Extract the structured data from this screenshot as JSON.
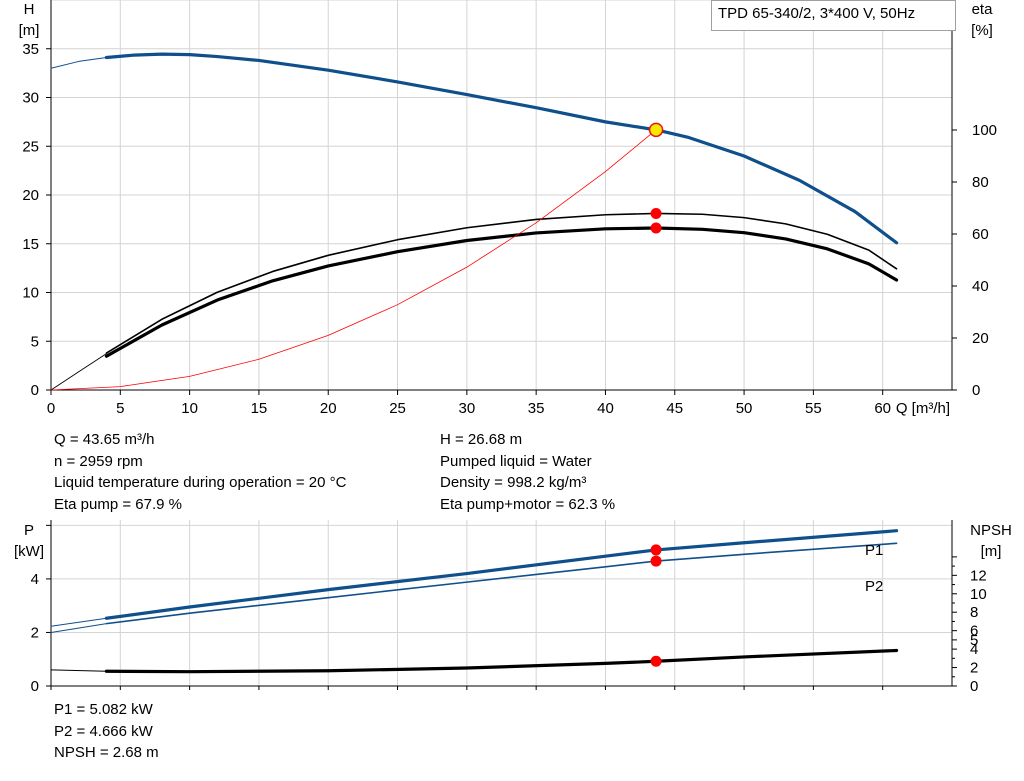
{
  "legend_title": "TPD 65-340/2, 3*400 V, 50Hz",
  "colors": {
    "blue": "#0f4f8c",
    "black": "#000000",
    "red": "#ff0000",
    "op_fill": "#f5e900",
    "op_stroke": "#ee1111"
  },
  "info_top_left": [
    "Q = 43.65 m³/h",
    "n = 2959 rpm",
    "Liquid temperature during operation = 20 °C",
    "Eta pump = 67.9 %"
  ],
  "info_top_right": [
    "H = 26.68 m",
    "Pumped liquid = Water",
    "Density = 998.2 kg/m³",
    "Eta pump+motor = 62.3 %"
  ],
  "info_bottom": [
    "P1 = 5.082 kW",
    "P2 = 4.666 kW",
    "NPSH = 2.68 m"
  ],
  "chart_data": [
    {
      "type": "line",
      "title": "",
      "xlabel": "Q [m³/h]",
      "ylabel_left": [
        "H",
        "[m]"
      ],
      "ylabel_right": [
        "eta",
        "[%]"
      ],
      "xlim": [
        0,
        65
      ],
      "ylim_left": [
        0,
        40
      ],
      "ylim_right": [
        0,
        150
      ],
      "x_ticks": [
        0,
        5,
        10,
        15,
        20,
        25,
        30,
        35,
        40,
        45,
        50,
        55,
        60
      ],
      "y_ticks_left": [
        0,
        5,
        10,
        15,
        20,
        25,
        30,
        35
      ],
      "y_ticks_right": [
        0,
        20,
        40,
        60,
        80,
        100
      ],
      "grid": true,
      "series": [
        {
          "id": "H",
          "axis": "left",
          "color": "#0f4f8c",
          "width": 3.2,
          "x": [
            4,
            6,
            8,
            10,
            12,
            15,
            20,
            25,
            30,
            35,
            40,
            43.65,
            46,
            50,
            54,
            58,
            61
          ],
          "y": [
            34.1,
            34.35,
            34.45,
            34.4,
            34.2,
            33.8,
            32.8,
            31.6,
            30.3,
            28.95,
            27.5,
            26.68,
            25.9,
            24.0,
            21.5,
            18.3,
            15.1
          ]
        },
        {
          "id": "H-ext",
          "axis": "left",
          "color": "#0f4f8c",
          "width": 1,
          "x": [
            0,
            2,
            4
          ],
          "y": [
            33.0,
            33.7,
            34.1
          ]
        },
        {
          "id": "eta-pump",
          "axis": "right",
          "color": "#000000",
          "width": 1.6,
          "x": [
            4,
            8,
            12,
            16,
            20,
            25,
            30,
            35,
            40,
            43.65,
            47,
            50,
            53,
            56,
            59,
            61
          ],
          "y": [
            14.2,
            27.2,
            37.6,
            45.6,
            51.8,
            57.8,
            62.4,
            65.6,
            67.4,
            67.9,
            67.6,
            66.3,
            63.9,
            59.9,
            53.8,
            46.6
          ]
        },
        {
          "id": "eta-total",
          "axis": "right",
          "color": "#000000",
          "width": 3.2,
          "x": [
            4,
            8,
            12,
            16,
            20,
            25,
            30,
            35,
            40,
            43.65,
            47,
            50,
            53,
            56,
            59,
            61
          ],
          "y": [
            13.0,
            25.0,
            34.6,
            42.0,
            47.7,
            53.2,
            57.5,
            60.4,
            62.0,
            62.3,
            61.8,
            60.5,
            58.1,
            54.3,
            48.5,
            42.3
          ]
        },
        {
          "id": "eta-ext",
          "axis": "right",
          "color": "#000000",
          "width": 0.9,
          "x": [
            0,
            2,
            4
          ],
          "y": [
            0,
            7,
            14
          ]
        },
        {
          "id": "system-curve",
          "axis": "left",
          "color": "#ff0000",
          "width": 0.8,
          "x": [
            0,
            5,
            10,
            15,
            20,
            25,
            30,
            35,
            40,
            43.65
          ],
          "y": [
            0,
            0.35,
            1.4,
            3.15,
            5.6,
            8.75,
            12.6,
            17.15,
            22.4,
            26.68
          ]
        }
      ],
      "operating_point": {
        "x": 43.65,
        "H": 26.68,
        "eta_pump": 67.9,
        "eta_total": 62.3
      }
    },
    {
      "type": "line",
      "title": "",
      "xlabel": "",
      "ylabel_left": [
        "P",
        "[kW]"
      ],
      "ylabel_right": [
        "NPSH",
        "[m]"
      ],
      "xlim": [
        0,
        65
      ],
      "ylim_left": [
        0,
        6.2
      ],
      "ylim_right": [
        0,
        18
      ],
      "y_ticks_left": [
        0,
        2,
        4
      ],
      "y_ticks_right": [
        0,
        2,
        4,
        5,
        6,
        8,
        10,
        12
      ],
      "grid": true,
      "series": [
        {
          "id": "P1",
          "name": "P1",
          "axis": "left",
          "color": "#0f4f8c",
          "width": 3.2,
          "x": [
            4,
            10,
            20,
            30,
            40,
            43.65,
            50,
            61
          ],
          "y": [
            2.53,
            2.95,
            3.6,
            4.2,
            4.85,
            5.082,
            5.35,
            5.8
          ]
        },
        {
          "id": "P1-ext",
          "axis": "left",
          "color": "#0f4f8c",
          "width": 1,
          "x": [
            0,
            4
          ],
          "y": [
            2.23,
            2.53
          ]
        },
        {
          "id": "P2",
          "name": "P2",
          "axis": "left",
          "color": "#0f4f8c",
          "width": 1.6,
          "x": [
            4,
            10,
            20,
            30,
            40,
            43.65,
            50,
            61
          ],
          "y": [
            2.33,
            2.72,
            3.3,
            3.88,
            4.45,
            4.666,
            4.92,
            5.33
          ]
        },
        {
          "id": "P2-ext",
          "axis": "left",
          "color": "#0f4f8c",
          "width": 1,
          "x": [
            0,
            4
          ],
          "y": [
            2.0,
            2.33
          ]
        },
        {
          "id": "NPSH",
          "name": "",
          "axis": "right",
          "color": "#000000",
          "width": 3.2,
          "x": [
            4,
            10,
            20,
            30,
            40,
            43.65,
            50,
            61
          ],
          "y": [
            1.6,
            1.55,
            1.65,
            1.95,
            2.45,
            2.68,
            3.15,
            3.85
          ]
        },
        {
          "id": "NPSH-ext",
          "axis": "right",
          "color": "#000000",
          "width": 1,
          "x": [
            0,
            4
          ],
          "y": [
            1.75,
            1.6
          ]
        }
      ],
      "operating_point": {
        "x": 43.65,
        "P1": 5.082,
        "P2": 4.666,
        "NPSH": 2.68
      }
    }
  ]
}
